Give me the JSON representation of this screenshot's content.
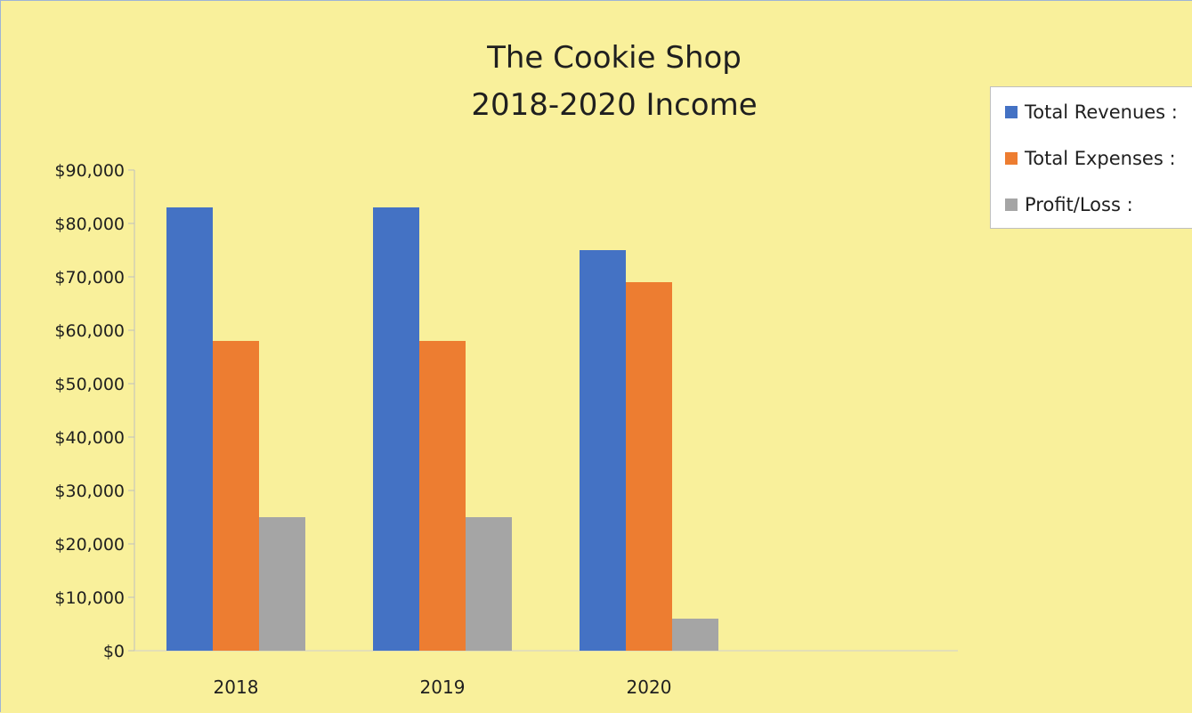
{
  "chart_data": {
    "type": "bar",
    "title": [
      "The Cookie Shop",
      "2018-2020 Income"
    ],
    "categories": [
      "2018",
      "2019",
      "2020"
    ],
    "series": [
      {
        "name": "Total Revenues :",
        "color": "#4472c4",
        "values": [
          83000,
          83000,
          75000
        ]
      },
      {
        "name": "Total Expenses :",
        "color": "#ed7d31",
        "values": [
          58000,
          58000,
          69000
        ]
      },
      {
        "name": "Profit/Loss :",
        "color": "#a5a5a5",
        "values": [
          25000,
          25000,
          6000
        ]
      }
    ],
    "ylim": [
      0,
      90000
    ],
    "yticks": [
      0,
      10000,
      20000,
      30000,
      40000,
      50000,
      60000,
      70000,
      80000,
      90000
    ],
    "ytick_labels": [
      "$0",
      "$10,000",
      "$20,000",
      "$30,000",
      "$40,000",
      "$50,000",
      "$60,000",
      "$70,000",
      "$80,000",
      "$90,000"
    ],
    "xlabel": "",
    "ylabel": "",
    "grid": false,
    "legend": "top-right",
    "background": "#f9f09b"
  }
}
